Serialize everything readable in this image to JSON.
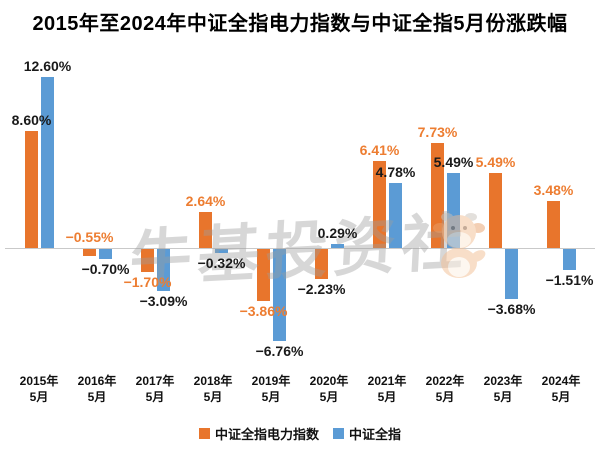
{
  "watermark": {
    "text": "牛基投资社",
    "mascot_icon": "cow-mascot"
  },
  "chart_data": {
    "type": "bar",
    "title": "2015年至2024年中证全指电力指数与中证全指5月份涨跌幅",
    "unit": "%",
    "categories": [
      "2015年\n5月",
      "2016年\n5月",
      "2017年\n5月",
      "2018年\n5月",
      "2019年\n5月",
      "2020年\n5月",
      "2021年\n5月",
      "2022年\n5月",
      "2023年\n5月",
      "2024年\n5月"
    ],
    "series": [
      {
        "name": "中证全指电力指数",
        "color": "#E8752C",
        "values": [
          8.6,
          -0.55,
          -1.7,
          2.64,
          -3.86,
          -2.23,
          6.41,
          7.73,
          5.49,
          3.48
        ],
        "labels": [
          "8.60%",
          "−0.55%",
          "−1.70%",
          "2.64%",
          "−3.86%",
          "−2.23%",
          "6.41%",
          "7.73%",
          "5.49%",
          "3.48%"
        ],
        "label_colors": [
          "#1a1a1a",
          "#ED7D31",
          "#ED7D31",
          "#ED7D31",
          "#ED7D31",
          "#1a1a1a",
          "#ED7D31",
          "#ED7D31",
          "#ED7D31",
          "#ED7D31"
        ]
      },
      {
        "name": "中证全指",
        "color": "#5B9BD5",
        "values": [
          12.6,
          -0.7,
          -3.09,
          -0.32,
          -6.76,
          0.29,
          4.78,
          5.49,
          -3.68,
          -1.51
        ],
        "labels": [
          "12.60%",
          "−0.70%",
          "−3.09%",
          "−0.32%",
          "−6.76%",
          "0.29%",
          "4.78%",
          "5.49%",
          "−3.68%",
          "−1.51%"
        ],
        "label_colors": [
          "#1a1a1a",
          "#1a1a1a",
          "#1a1a1a",
          "#1a1a1a",
          "#1a1a1a",
          "#1a1a1a",
          "#1a1a1a",
          "#1a1a1a",
          "#1a1a1a",
          "#1a1a1a"
        ]
      }
    ],
    "layout_hints": {
      "legend_position": "bottom",
      "grid": false,
      "y_axis_visible": false,
      "x_axis_line_color": "#C9C9C9",
      "ylim": [
        -7.5,
        13.5
      ],
      "label_exceptions": [
        {
          "series": 0,
          "index": 1,
          "position": "above_axis"
        }
      ]
    }
  }
}
